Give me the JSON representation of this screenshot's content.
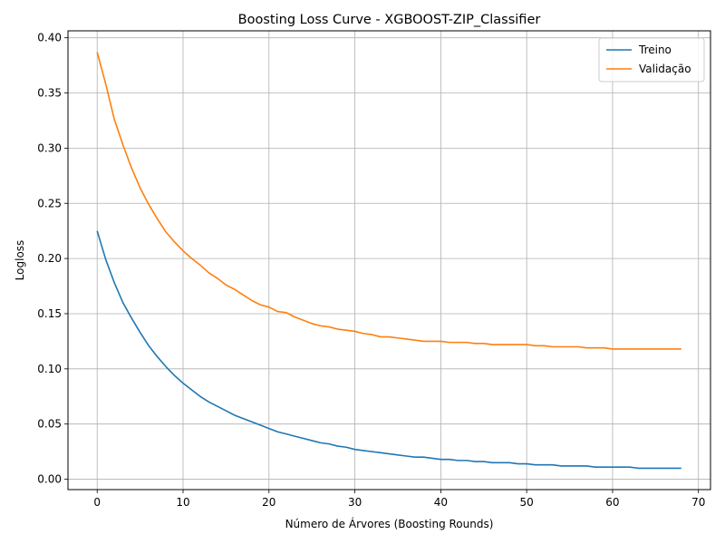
{
  "chart_data": {
    "type": "line",
    "title": "Boosting Loss Curve - XGBOOST-ZIP_Classifier",
    "xlabel": "Número de Árvores (Boosting Rounds)",
    "ylabel": "Logloss",
    "xlim": [
      -3.4,
      71.4
    ],
    "ylim": [
      -0.0094,
      0.4063
    ],
    "xticks": [
      0,
      10,
      20,
      30,
      40,
      50,
      60,
      70
    ],
    "yticks": [
      0.0,
      0.05,
      0.1,
      0.15,
      0.2,
      0.25,
      0.3,
      0.35,
      0.4
    ],
    "xtick_labels": [
      "0",
      "10",
      "20",
      "30",
      "40",
      "50",
      "60",
      "70"
    ],
    "ytick_labels": [
      "0.00",
      "0.05",
      "0.10",
      "0.15",
      "0.20",
      "0.25",
      "0.30",
      "0.35",
      "0.40"
    ],
    "grid": true,
    "legend_position": "top-right",
    "x": [
      0,
      1,
      2,
      3,
      4,
      5,
      6,
      7,
      8,
      9,
      10,
      11,
      12,
      13,
      14,
      15,
      16,
      17,
      18,
      19,
      20,
      21,
      22,
      23,
      24,
      25,
      26,
      27,
      28,
      29,
      30,
      31,
      32,
      33,
      34,
      35,
      36,
      37,
      38,
      39,
      40,
      41,
      42,
      43,
      44,
      45,
      46,
      47,
      48,
      49,
      50,
      51,
      52,
      53,
      54,
      55,
      56,
      57,
      58,
      59,
      60,
      61,
      62,
      63,
      64,
      65,
      66,
      67,
      68
    ],
    "series": [
      {
        "name": "Treino",
        "color": "#1f77b4",
        "values": [
          0.225,
          0.199,
          0.178,
          0.16,
          0.146,
          0.133,
          0.121,
          0.111,
          0.102,
          0.094,
          0.087,
          0.081,
          0.075,
          0.07,
          0.066,
          0.062,
          0.058,
          0.055,
          0.052,
          0.049,
          0.046,
          0.043,
          0.041,
          0.039,
          0.037,
          0.035,
          0.033,
          0.032,
          0.03,
          0.029,
          0.027,
          0.026,
          0.025,
          0.024,
          0.023,
          0.022,
          0.021,
          0.02,
          0.02,
          0.019,
          0.018,
          0.018,
          0.017,
          0.017,
          0.016,
          0.016,
          0.015,
          0.015,
          0.015,
          0.014,
          0.014,
          0.013,
          0.013,
          0.013,
          0.012,
          0.012,
          0.012,
          0.012,
          0.011,
          0.011,
          0.011,
          0.011,
          0.011,
          0.01,
          0.01,
          0.01,
          0.01,
          0.01,
          0.01
        ]
      },
      {
        "name": "Validação",
        "color": "#ff7f0e",
        "values": [
          0.387,
          0.358,
          0.326,
          0.303,
          0.282,
          0.264,
          0.249,
          0.236,
          0.224,
          0.215,
          0.207,
          0.2,
          0.194,
          0.187,
          0.182,
          0.176,
          0.172,
          0.167,
          0.162,
          0.158,
          0.156,
          0.152,
          0.151,
          0.147,
          0.144,
          0.141,
          0.139,
          0.138,
          0.136,
          0.135,
          0.134,
          0.132,
          0.131,
          0.129,
          0.129,
          0.128,
          0.127,
          0.126,
          0.125,
          0.125,
          0.125,
          0.124,
          0.124,
          0.124,
          0.123,
          0.123,
          0.122,
          0.122,
          0.122,
          0.122,
          0.122,
          0.121,
          0.121,
          0.12,
          0.12,
          0.12,
          0.12,
          0.119,
          0.119,
          0.119,
          0.118,
          0.118,
          0.118,
          0.118,
          0.118,
          0.118,
          0.118,
          0.118,
          0.118
        ]
      }
    ]
  }
}
